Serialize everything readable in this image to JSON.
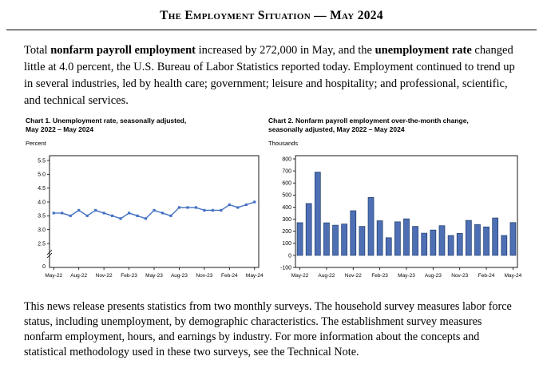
{
  "header": {
    "title": "The Employment Situation — May 2024"
  },
  "intro": {
    "seg_total": "Total ",
    "bold_payroll": "nonfarm payroll employment",
    "seg_increase": " increased by 272,000 in May, and the ",
    "bold_unemployment": "unemployment rate",
    "seg_rest": " changed little at 4.0 percent, the U.S. Bureau of Labor Statistics reported today. Employment continued to trend up in several industries, led by health care; government; leisure and hospitality; and professional, scientific, and technical services."
  },
  "footer_paragraph": "This news release presents statistics from two monthly surveys. The household survey measures labor force status, including unemployment, by demographic characteristics. The establishment survey measures nonfarm employment, hours, and earnings by industry. For more information about the concepts and statistical methodology used in these two surveys, see the Technical Note.",
  "chart_data": [
    {
      "type": "line",
      "title_line1": "Chart 1. Unemployment rate, seasonally adjusted,",
      "title_line2": "May 2022 – May 2024",
      "ylabel": "Percent",
      "x": [
        "May-22",
        "Jun-22",
        "Jul-22",
        "Aug-22",
        "Sep-22",
        "Oct-22",
        "Nov-22",
        "Dec-22",
        "Jan-23",
        "Feb-23",
        "Mar-23",
        "Apr-23",
        "May-23",
        "Jun-23",
        "Jul-23",
        "Aug-23",
        "Sep-23",
        "Oct-23",
        "Nov-23",
        "Dec-23",
        "Jan-24",
        "Feb-24",
        "Mar-24",
        "Apr-24",
        "May-24"
      ],
      "values": [
        3.6,
        3.6,
        3.5,
        3.7,
        3.5,
        3.7,
        3.6,
        3.5,
        3.4,
        3.6,
        3.5,
        3.4,
        3.7,
        3.6,
        3.5,
        3.8,
        3.8,
        3.8,
        3.7,
        3.7,
        3.7,
        3.9,
        3.8,
        3.9,
        4.0
      ],
      "ylim": [
        2.5,
        5.5
      ],
      "yticks": [
        "5.5",
        "5.0",
        "4.5",
        "4.0",
        "3.5",
        "3.0",
        "2.5"
      ],
      "xtick_labels": [
        "May-22",
        "Aug-22",
        "Nov-22",
        "Feb-23",
        "May-23",
        "Aug-23",
        "Nov-23",
        "Feb-24",
        "May-24"
      ],
      "xtick_indices": [
        0,
        3,
        6,
        9,
        12,
        15,
        18,
        21,
        24
      ],
      "axis_break": true,
      "axis_zero_label": "0",
      "line_color": "#4472c4",
      "grid": false,
      "legend": false
    },
    {
      "type": "bar",
      "title_line1": "Chart 2. Nonfarm payroll employment over-the-month change,",
      "title_line2": "seasonally adjusted, May 2022 – May 2024",
      "ylabel": "Thousands",
      "x": [
        "May-22",
        "Jun-22",
        "Jul-22",
        "Aug-22",
        "Sep-22",
        "Oct-22",
        "Nov-22",
        "Dec-22",
        "Jan-23",
        "Feb-23",
        "Mar-23",
        "Apr-23",
        "May-23",
        "Jun-23",
        "Jul-23",
        "Aug-23",
        "Sep-23",
        "Oct-23",
        "Nov-23",
        "Dec-23",
        "Jan-24",
        "Feb-24",
        "Mar-24",
        "Apr-24",
        "May-24"
      ],
      "values": [
        271,
        430,
        690,
        270,
        250,
        260,
        370,
        240,
        480,
        287,
        146,
        278,
        303,
        240,
        184,
        210,
        246,
        165,
        182,
        290,
        256,
        236,
        310,
        165,
        272
      ],
      "ylim": [
        -100,
        800
      ],
      "yticks": [
        "800",
        "700",
        "600",
        "500",
        "400",
        "300",
        "200",
        "100",
        "0",
        "-100"
      ],
      "xtick_labels": [
        "May-22",
        "Aug-22",
        "Nov-22",
        "Feb-23",
        "May-23",
        "Aug-23",
        "Nov-23",
        "Feb-24",
        "May-24"
      ],
      "xtick_indices": [
        0,
        3,
        6,
        9,
        12,
        15,
        18,
        21,
        24
      ],
      "axis_break": false,
      "bar_fill": "#4f6fb5",
      "bar_stroke": "#1b3a66",
      "grid": false,
      "legend": false
    }
  ]
}
